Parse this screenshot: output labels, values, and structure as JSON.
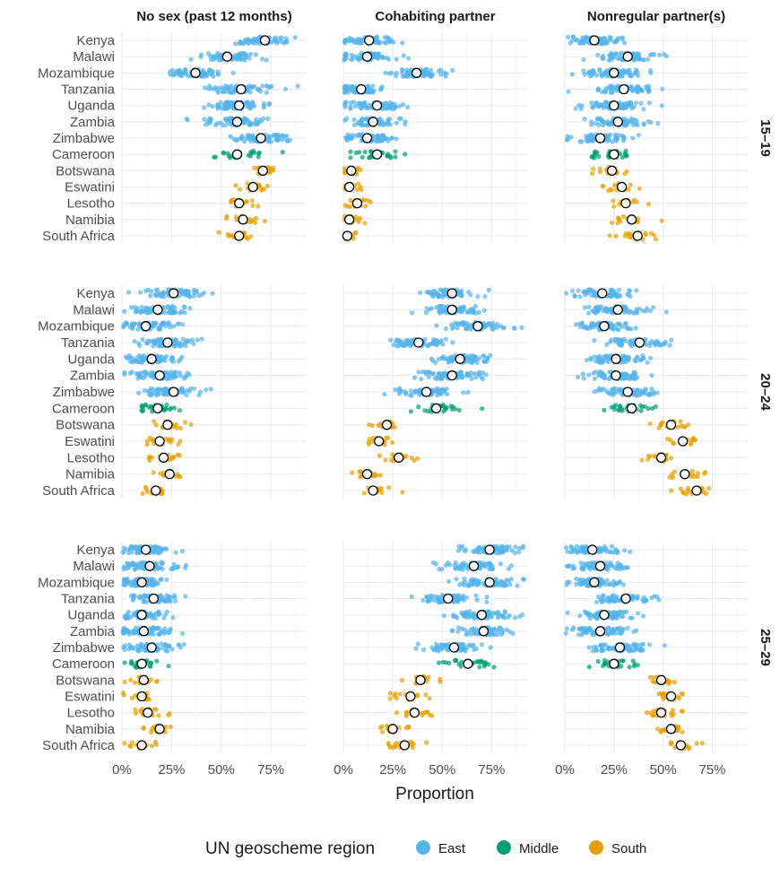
{
  "chart_data": {
    "type": "scatter",
    "x_label": "Proportion",
    "x_ticks": [
      "0%",
      "25%",
      "50%",
      "75%"
    ],
    "x_tick_values": [
      0,
      0.25,
      0.5,
      0.75
    ],
    "xlim": [
      0,
      0.93
    ],
    "grid": true,
    "legend_title": "UN geoscheme region",
    "legend_position": "bottom",
    "legend": [
      {
        "name": "East",
        "color": "#56B4E9"
      },
      {
        "name": "Middle",
        "color": "#009E73"
      },
      {
        "name": "South",
        "color": "#E69F00"
      }
    ],
    "columns": [
      "No sex (past 12 months)",
      "Cohabiting partner",
      "Nonregular partner(s)"
    ],
    "rows": [
      "15–19",
      "20–24",
      "25–29"
    ],
    "countries": [
      "Kenya",
      "Malawi",
      "Mozambique",
      "Tanzania",
      "Uganda",
      "Zambia",
      "Zimbabwe",
      "Cameroon",
      "Botswana",
      "Eswatini",
      "Lesotho",
      "Namibia",
      "South Africa"
    ],
    "country_region": [
      "East",
      "East",
      "East",
      "East",
      "East",
      "East",
      "East",
      "Middle",
      "South",
      "South",
      "South",
      "South",
      "South"
    ],
    "point_estimates": {
      "15–19": {
        "No sex (past 12 months)": [
          0.72,
          0.53,
          0.37,
          0.6,
          0.59,
          0.58,
          0.7,
          0.58,
          0.71,
          0.66,
          0.59,
          0.61,
          0.59
        ],
        "Cohabiting partner": [
          0.13,
          0.12,
          0.37,
          0.09,
          0.17,
          0.15,
          0.12,
          0.17,
          0.04,
          0.03,
          0.07,
          0.03,
          0.02
        ],
        "Nonregular partner(s)": [
          0.15,
          0.32,
          0.25,
          0.3,
          0.25,
          0.27,
          0.18,
          0.25,
          0.24,
          0.29,
          0.31,
          0.34,
          0.37
        ]
      },
      "20–24": {
        "No sex (past 12 months)": [
          0.26,
          0.18,
          0.12,
          0.23,
          0.15,
          0.19,
          0.26,
          0.18,
          0.23,
          0.19,
          0.21,
          0.24,
          0.17
        ],
        "Cohabiting partner": [
          0.55,
          0.55,
          0.68,
          0.38,
          0.59,
          0.55,
          0.42,
          0.47,
          0.22,
          0.18,
          0.28,
          0.12,
          0.15
        ],
        "Nonregular partner(s)": [
          0.19,
          0.27,
          0.2,
          0.38,
          0.26,
          0.26,
          0.32,
          0.34,
          0.54,
          0.6,
          0.49,
          0.61,
          0.67
        ]
      },
      "25–29": {
        "No sex (past 12 months)": [
          0.12,
          0.14,
          0.1,
          0.16,
          0.1,
          0.11,
          0.15,
          0.1,
          0.11,
          0.1,
          0.13,
          0.19,
          0.1
        ],
        "Cohabiting partner": [
          0.74,
          0.66,
          0.74,
          0.53,
          0.7,
          0.71,
          0.56,
          0.63,
          0.39,
          0.34,
          0.36,
          0.25,
          0.31
        ],
        "Nonregular partner(s)": [
          0.14,
          0.18,
          0.15,
          0.31,
          0.2,
          0.18,
          0.28,
          0.25,
          0.49,
          0.54,
          0.49,
          0.54,
          0.59
        ]
      }
    }
  }
}
